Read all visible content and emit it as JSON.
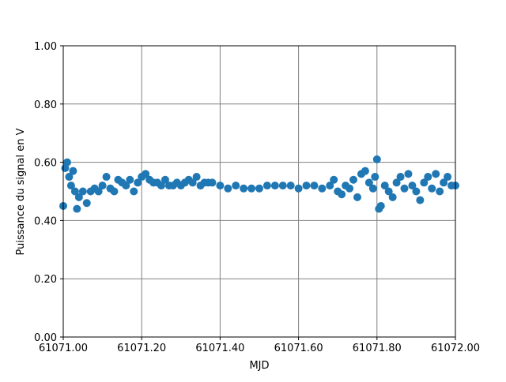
{
  "chart_data": {
    "type": "scatter",
    "xlabel": "MJD",
    "ylabel": "Puissance du signal en V",
    "xlim": [
      61071.0,
      61072.0
    ],
    "xticks": [
      {
        "value": 61071.0,
        "label": "61071.00"
      },
      {
        "value": 61071.2,
        "label": "61071.20"
      },
      {
        "value": 61071.4,
        "label": "61071.40"
      },
      {
        "value": 61071.6,
        "label": "61071.60"
      },
      {
        "value": 61071.8,
        "label": "61071.80"
      },
      {
        "value": 61072.0,
        "label": "61072.00"
      }
    ],
    "ylim": [
      0,
      1
    ],
    "yticks": [
      {
        "value": 0,
        "label": "0.00"
      },
      {
        "value": 0.2,
        "label": "0.20"
      },
      {
        "value": 0.4,
        "label": "0.40"
      },
      {
        "value": 0.6,
        "label": "0.60"
      },
      {
        "value": 0.8,
        "label": "0.80"
      },
      {
        "value": 1,
        "label": "1.00"
      }
    ],
    "grid": true,
    "series": [
      {
        "color": "#1f77b4",
        "x": [
          61071.0,
          61071.005,
          61071.01,
          61071.015,
          61071.02,
          61071.025,
          61071.03,
          61071.035,
          61071.04,
          61071.05,
          61071.06,
          61071.07,
          61071.08,
          61071.09,
          61071.1,
          61071.11,
          61071.12,
          61071.13,
          61071.14,
          61071.15,
          61071.16,
          61071.17,
          61071.18,
          61071.19,
          61071.2,
          61071.21,
          61071.22,
          61071.23,
          61071.24,
          61071.25,
          61071.26,
          61071.27,
          61071.28,
          61071.29,
          61071.3,
          61071.31,
          61071.32,
          61071.33,
          61071.34,
          61071.35,
          61071.36,
          61071.37,
          61071.38,
          61071.4,
          61071.42,
          61071.44,
          61071.46,
          61071.48,
          61071.5,
          61071.52,
          61071.54,
          61071.56,
          61071.58,
          61071.6,
          61071.62,
          61071.64,
          61071.66,
          61071.68,
          61071.69,
          61071.7,
          61071.71,
          61071.72,
          61071.73,
          61071.74,
          61071.75,
          61071.76,
          61071.77,
          61071.78,
          61071.79,
          61071.795,
          61071.8,
          61071.805,
          61071.81,
          61071.82,
          61071.83,
          61071.84,
          61071.85,
          61071.86,
          61071.87,
          61071.88,
          61071.89,
          61071.9,
          61071.91,
          61071.92,
          61071.93,
          61071.94,
          61071.95,
          61071.96,
          61071.97,
          61071.98,
          61071.99,
          61072.0
        ],
        "values": [
          0.45,
          0.58,
          0.6,
          0.55,
          0.52,
          0.57,
          0.5,
          0.44,
          0.48,
          0.5,
          0.46,
          0.5,
          0.51,
          0.5,
          0.52,
          0.55,
          0.51,
          0.5,
          0.54,
          0.53,
          0.52,
          0.54,
          0.5,
          0.53,
          0.55,
          0.56,
          0.54,
          0.53,
          0.53,
          0.52,
          0.54,
          0.52,
          0.52,
          0.53,
          0.52,
          0.53,
          0.54,
          0.53,
          0.55,
          0.52,
          0.53,
          0.53,
          0.53,
          0.52,
          0.51,
          0.52,
          0.51,
          0.51,
          0.51,
          0.52,
          0.52,
          0.52,
          0.52,
          0.51,
          0.52,
          0.52,
          0.51,
          0.52,
          0.54,
          0.5,
          0.49,
          0.52,
          0.51,
          0.54,
          0.48,
          0.56,
          0.57,
          0.53,
          0.51,
          0.55,
          0.61,
          0.44,
          0.45,
          0.52,
          0.5,
          0.48,
          0.53,
          0.55,
          0.51,
          0.56,
          0.52,
          0.5,
          0.47,
          0.53,
          0.55,
          0.51,
          0.56,
          0.5,
          0.53,
          0.55,
          0.52,
          0.52
        ]
      }
    ]
  }
}
